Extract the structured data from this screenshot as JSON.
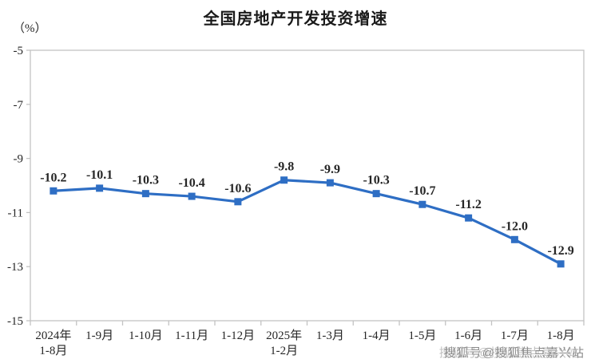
{
  "chart_data": {
    "type": "line",
    "title": "全国房地产开发投资增速",
    "unit_label": "（%）",
    "categories": [
      "2024年\n1-8月",
      "1-9月",
      "1-10月",
      "1-11月",
      "1-12月",
      "2025年\n1-2月",
      "1-3月",
      "1-4月",
      "1-5月",
      "1-6月",
      "1-7月",
      "1-8月"
    ],
    "values": [
      -10.2,
      -10.1,
      -10.3,
      -10.4,
      -10.6,
      -9.8,
      -9.9,
      -10.3,
      -10.7,
      -11.2,
      -12.0,
      -12.9
    ],
    "data_labels": [
      "-10.2",
      "-10.1",
      "-10.3",
      "-10.4",
      "-10.6",
      "-9.8",
      "-9.9",
      "-10.3",
      "-10.7",
      "-11.2",
      "-12.0",
      "-12.9"
    ],
    "ylim": [
      -15,
      -5
    ],
    "yticks": [
      -5,
      -7,
      -9,
      -11,
      -13,
      -15
    ],
    "grid": false,
    "legend": "none",
    "marker": "square",
    "colors": {
      "line": "#2e6ec4",
      "marker": "#2e6ec4",
      "axis": "#c3c3c3",
      "tick_text": "#262626",
      "data_label_text": "#262626",
      "title_text": "#1a1a1a",
      "watermark_text": "#8c8c8c"
    }
  },
  "watermark": {
    "text": "搜狐号@搜狐焦点嘉兴站"
  }
}
